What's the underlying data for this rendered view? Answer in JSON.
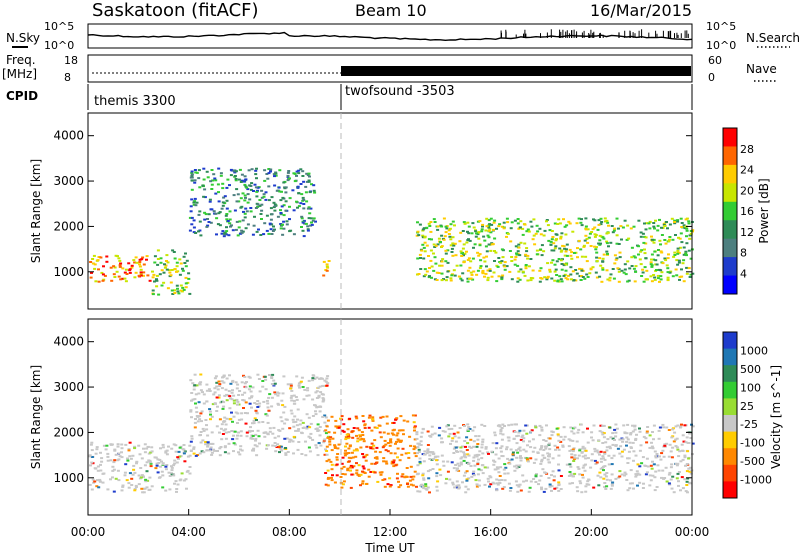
{
  "header": {
    "station": "Saskatoon (fitACF)",
    "beam": "Beam 10",
    "date": "16/Mar/2015"
  },
  "noise_panel": {
    "left_label": "N.Sky",
    "right_label": "N.Search",
    "ticks_left": [
      "10^5",
      "10^0"
    ],
    "ticks_right": [
      "10^5",
      "10^0"
    ]
  },
  "freq_panel": {
    "left_label_1": "Freq.",
    "left_label_2": "[MHz]",
    "right_label": "Nave",
    "ticks_left": [
      "18",
      "8"
    ],
    "ticks_right": [
      "60",
      "0"
    ]
  },
  "cpid_panel": {
    "label": "CPID",
    "modes": [
      "themis 3300",
      "twofsound -3503"
    ]
  },
  "chart_data": [
    {
      "type": "heatmap",
      "title": "Power",
      "ylabel": "Slant Range [km]",
      "ylim": [
        180,
        4500
      ],
      "yticks": [
        "1000",
        "2000",
        "3000",
        "4000"
      ],
      "colorbar": {
        "label": "Power [dB]",
        "ticks": [
          "28",
          "24",
          "20",
          "16",
          "12",
          "8",
          "4"
        ],
        "colors": [
          "#ff0000",
          "#ff6600",
          "#ffcc00",
          "#c8e600",
          "#33cc33",
          "#2e8b57",
          "#4d7f7f",
          "#1e3ccc",
          "#0000ff"
        ]
      },
      "features": [
        {
          "x_hr": [
            0.0,
            2.5
          ],
          "range_km": [
            800,
            1400
          ],
          "power_db": 28
        },
        {
          "x_hr": [
            2.5,
            4.0
          ],
          "range_km": [
            500,
            1500
          ],
          "power_db": 20
        },
        {
          "x_hr": [
            4.0,
            9.0
          ],
          "range_km": [
            1800,
            3300
          ],
          "power_db": 12
        },
        {
          "x_hr": [
            9.3,
            9.6
          ],
          "range_km": [
            800,
            1300
          ],
          "power_db": 28
        },
        {
          "x_hr": [
            13.0,
            24.0
          ],
          "range_km": [
            800,
            2200
          ],
          "power_db": 20
        }
      ]
    },
    {
      "type": "heatmap",
      "title": "Velocity",
      "ylabel": "Slant Range [km]",
      "xlabel": "Time UT",
      "ylim": [
        180,
        4500
      ],
      "yticks": [
        "1000",
        "2000",
        "3000",
        "4000"
      ],
      "xticks": [
        "00:00",
        "04:00",
        "08:00",
        "12:00",
        "16:00",
        "20:00",
        "00:00"
      ],
      "colorbar": {
        "label": "Velocity [m s^-1]",
        "ticks": [
          "1000",
          "500",
          "100",
          "25",
          "-25",
          "-100",
          "-500",
          "-1000"
        ],
        "colors": [
          "#1e3ccc",
          "#1f77b4",
          "#2e8b57",
          "#33cc33",
          "#99dd33",
          "#c8c8c8",
          "#ffcc00",
          "#ff8800",
          "#ff4400",
          "#ff0000"
        ]
      },
      "features": [
        {
          "x_hr": [
            0.0,
            4.0
          ],
          "range_km": [
            700,
            1800
          ],
          "velocity_ms": 0
        },
        {
          "x_hr": [
            4.0,
            9.5
          ],
          "range_km": [
            1500,
            3300
          ],
          "velocity_ms": 0
        },
        {
          "x_hr": [
            9.3,
            13.0
          ],
          "range_km": [
            800,
            2400
          ],
          "velocity_ms": -250
        },
        {
          "x_hr": [
            13.0,
            24.0
          ],
          "range_km": [
            700,
            2200
          ],
          "velocity_ms": 0
        }
      ]
    }
  ],
  "colors": {
    "power_bg": "#ffffff",
    "ground_scatter": "#c8c8c8",
    "axes": "#000000"
  }
}
